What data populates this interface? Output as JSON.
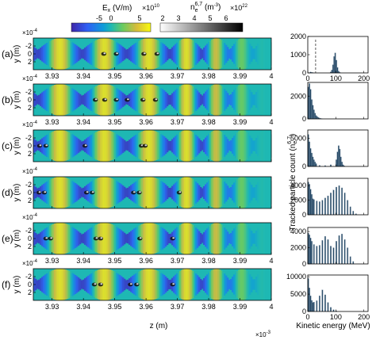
{
  "colorbars": {
    "ex": {
      "label": "E",
      "label_sub": "x",
      "label_unit": " (V/m)",
      "ticks": [
        "-5",
        "0",
        "5"
      ],
      "tick_values": [
        -5,
        0,
        5
      ],
      "range": [
        -7,
        7
      ],
      "multiplier_base": "×10",
      "multiplier_exp": "10"
    },
    "ne": {
      "label": "n",
      "label_sub": "e",
      "label_sup": "6,7",
      "label_unit": " (m",
      "label_unit_exp": "-3",
      "label_unit_close": ")",
      "ticks": [
        "2",
        "3",
        "4",
        "5",
        "6"
      ],
      "tick_values": [
        2,
        3,
        4,
        5,
        6
      ],
      "range": [
        1.7,
        6.9
      ],
      "multiplier_base": "×10",
      "multiplier_exp": "22"
    }
  },
  "left_panels": {
    "ylabel": "y (m)",
    "ytick_labels": [
      "-2",
      "0",
      "2"
    ],
    "y_multiplier_base": "×10",
    "y_multiplier_exp": "-4",
    "xtick_labels": [
      "3.93",
      "3.94",
      "3.95",
      "3.96",
      "3.97",
      "3.98",
      "3.99",
      "4"
    ],
    "xtick_values": [
      3.93,
      3.94,
      3.95,
      3.96,
      3.97,
      3.98,
      3.99,
      4.0
    ],
    "xlim": [
      3.924,
      4.0
    ],
    "ylim": [
      -4,
      4
    ],
    "xlabel": "z (m)",
    "x_multiplier_base": "×10",
    "x_multiplier_exp": "-3"
  },
  "panels": [
    {
      "letter": "(a)",
      "spots": [
        3.9465,
        3.9505,
        3.9593,
        3.9635
      ]
    },
    {
      "letter": "(b)",
      "spots": [
        3.9438,
        3.9468,
        3.9505,
        3.954,
        3.959,
        3.963
      ]
    },
    {
      "letter": "(c)",
      "spots": [
        3.926,
        3.928,
        3.9405,
        3.9585,
        3.9597
      ]
    },
    {
      "letter": "(d)",
      "spots": [
        3.9258,
        3.9275,
        3.941,
        3.9428,
        3.956,
        3.9578,
        3.9706
      ]
    },
    {
      "letter": "(e)",
      "spots": [
        3.928,
        3.9295,
        3.944,
        3.9455,
        3.958,
        3.9685
      ]
    },
    {
      "letter": "(f)",
      "spots": [
        3.9435,
        3.9455,
        3.955,
        3.957,
        3.9685
      ]
    }
  ],
  "histograms": {
    "ylabel": "Tracked particle count (n",
    "ylabel_sub": "e",
    "ylabel_sup": "6,7",
    "ylabel_close": ")",
    "xlabel": "Kinetic energy (MeV)",
    "xtick_labels": [
      "0",
      "100",
      "200"
    ],
    "xlim": [
      0,
      215
    ],
    "panels": [
      {
        "ytick_labels": [
          "0",
          "1000",
          "2000"
        ],
        "ymax": 2000,
        "dashed_x": 28
      },
      {
        "ytick_labels": [
          "0",
          "2000"
        ],
        "ymax": 3200
      },
      {
        "ytick_labels": [
          "0",
          "5000"
        ],
        "ymax": 6500
      },
      {
        "ytick_labels": [
          "0",
          "2000",
          "4000"
        ],
        "ymax": 5000
      },
      {
        "ytick_labels": [
          "0",
          "2000",
          "4000"
        ],
        "ymax": 4500
      },
      {
        "ytick_labels": [
          "0",
          "5000",
          "10000"
        ],
        "ymax": 10500
      }
    ]
  },
  "chart_data": [
    {
      "type": "heatmap",
      "title": "",
      "quantity": "E_x (V/m), x10^10, with electron density n_e^(6,7) overlay (m^-3, x10^22)",
      "xlabel": "z (m)",
      "ylabel": "y (m)",
      "x_scale_note": "x10^-3",
      "y_scale_note": "x10^-4",
      "panels": [
        "(a)",
        "(b)",
        "(c)",
        "(d)",
        "(e)",
        "(f)"
      ],
      "xlim": [
        3.924,
        4.0
      ],
      "ylim": [
        -4,
        4
      ],
      "field_period_z": 0.0142,
      "field_peak_amplitude": 6.0
    },
    {
      "type": "bar",
      "title": "",
      "xlabel": "Kinetic energy (MeV)",
      "ylabel": "Tracked particle count (n_e^6,7)",
      "xlim": [
        0,
        215
      ],
      "bin_width": 4,
      "series": [
        {
          "panel": "(a)",
          "x": [
            8,
            12,
            16,
            80,
            84,
            88,
            92,
            96,
            100,
            104,
            108,
            112
          ],
          "values": [
            50,
            30,
            20,
            60,
            160,
            450,
            900,
            1100,
            700,
            300,
            100,
            30
          ]
        },
        {
          "panel": "(b)",
          "x": [
            0,
            4,
            8,
            12,
            16,
            20,
            24,
            28,
            32,
            36,
            40,
            44,
            48
          ],
          "values": [
            2800,
            3100,
            2600,
            1700,
            1200,
            800,
            500,
            300,
            200,
            120,
            70,
            40,
            20
          ]
        },
        {
          "panel": "(c)",
          "x": [
            0,
            4,
            8,
            12,
            16,
            20,
            24,
            28,
            40,
            60,
            80,
            100,
            104,
            108,
            112,
            116,
            120,
            124,
            128
          ],
          "values": [
            5700,
            4400,
            3200,
            2400,
            1700,
            1200,
            800,
            500,
            200,
            150,
            300,
            1200,
            2600,
            3700,
            3100,
            1700,
            800,
            300,
            100
          ]
        },
        {
          "panel": "(d)",
          "x": [
            0,
            4,
            8,
            12,
            16,
            20,
            30,
            40,
            50,
            60,
            70,
            80,
            90,
            100,
            110,
            120,
            130,
            140,
            150,
            160,
            170
          ],
          "values": [
            4500,
            4200,
            3500,
            2800,
            2200,
            2100,
            1900,
            1800,
            2000,
            2300,
            2600,
            3000,
            3400,
            3800,
            4000,
            3700,
            3000,
            2000,
            1100,
            500,
            150
          ]
        },
        {
          "panel": "(e)",
          "x": [
            0,
            4,
            8,
            12,
            20,
            30,
            40,
            50,
            60,
            70,
            80,
            90,
            100,
            110,
            120,
            130,
            140,
            150,
            160
          ],
          "values": [
            3800,
            3600,
            3200,
            2800,
            2400,
            2200,
            2300,
            2900,
            3400,
            3000,
            2200,
            2000,
            2800,
            3500,
            3700,
            3000,
            2000,
            900,
            300
          ]
        },
        {
          "panel": "(f)",
          "x": [
            0,
            4,
            8,
            12,
            16,
            20,
            30,
            40,
            50,
            60,
            70,
            80,
            90,
            100
          ],
          "values": [
            9500,
            6800,
            4500,
            3200,
            2600,
            2700,
            3100,
            4500,
            6200,
            4800,
            2600,
            1200,
            500,
            150
          ]
        }
      ]
    }
  ]
}
